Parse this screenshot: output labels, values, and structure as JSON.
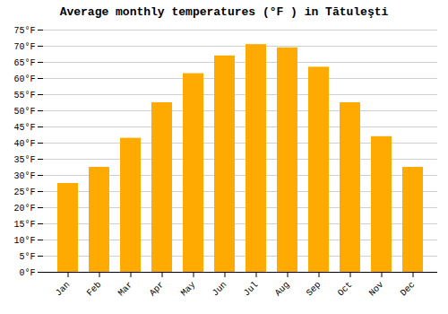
{
  "chart_data": {
    "type": "bar",
    "title": "Average monthly temperatures (°F ) in Tătuleşti",
    "categories": [
      "Jan",
      "Feb",
      "Mar",
      "Apr",
      "May",
      "Jun",
      "Jul",
      "Aug",
      "Sep",
      "Oct",
      "Nov",
      "Dec"
    ],
    "values": [
      27.5,
      32.5,
      41.5,
      52.5,
      61.5,
      67.0,
      70.5,
      69.5,
      63.5,
      52.5,
      42.0,
      32.5
    ],
    "color": "#FFAA00",
    "ylim": [
      0,
      75
    ],
    "yticks": [
      {
        "value": 0,
        "label": "0°F"
      },
      {
        "value": 5,
        "label": "5°F"
      },
      {
        "value": 10,
        "label": "10°F"
      },
      {
        "value": 15,
        "label": "15°F"
      },
      {
        "value": 20,
        "label": "20°F"
      },
      {
        "value": 25,
        "label": "25°F"
      },
      {
        "value": 30,
        "label": "30°F"
      },
      {
        "value": 35,
        "label": "35°F"
      },
      {
        "value": 40,
        "label": "40°F"
      },
      {
        "value": 45,
        "label": "45°F"
      },
      {
        "value": 50,
        "label": "50°F"
      },
      {
        "value": 55,
        "label": "55°F"
      },
      {
        "value": 60,
        "label": "60°F"
      },
      {
        "value": 65,
        "label": "65°F"
      },
      {
        "value": 70,
        "label": "70°F"
      },
      {
        "value": 75,
        "label": "75°F"
      }
    ],
    "grid": true
  }
}
